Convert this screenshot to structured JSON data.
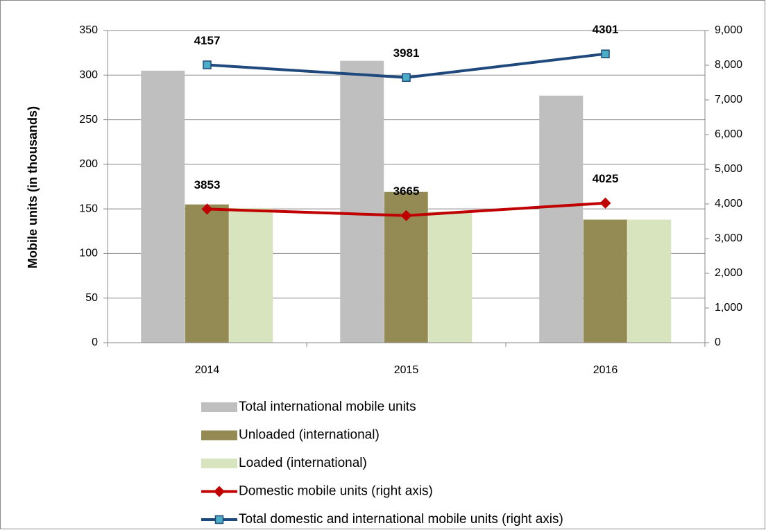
{
  "chart_data": {
    "type": "bar",
    "y_axis_label": "Mobile units (in thousands)",
    "categories": [
      "2014",
      "2015",
      "2016"
    ],
    "ylim": [
      0,
      350
    ],
    "yticks": [
      0,
      50,
      100,
      150,
      200,
      250,
      300,
      350
    ],
    "y2lim": [
      0,
      9000
    ],
    "y2ticks": [
      0,
      {
        "value": 1000,
        "label": "1,000"
      },
      {
        "value": 2000,
        "label": "2,000"
      },
      {
        "value": 3000,
        "label": "3,000"
      },
      {
        "value": 4000,
        "label": "4,000"
      },
      {
        "value": 5000,
        "label": "5,000"
      },
      {
        "value": 6000,
        "label": "6,000"
      },
      {
        "value": 7000,
        "label": "7,000"
      },
      {
        "value": 8000,
        "label": "8,000"
      },
      {
        "value": 9000,
        "label": "9,000"
      }
    ],
    "grid": true,
    "legend": "bottom",
    "series": [
      {
        "name": "Total international mobile units",
        "type": "bar",
        "color": "#bfbfbf",
        "values": [
          305,
          316,
          277
        ]
      },
      {
        "name": "Unloaded (international)",
        "type": "bar",
        "color": "#948a54",
        "values": [
          155,
          169,
          138
        ]
      },
      {
        "name": "Loaded (international)",
        "type": "bar",
        "color": "#d7e4bd",
        "values": [
          151,
          147,
          138
        ]
      },
      {
        "name": "Domestic mobile units (right axis)",
        "type": "line",
        "axis": "y2",
        "marker": "diamond",
        "color": "#c00000",
        "marker_color": "#c00000",
        "values": [
          3853,
          3665,
          4025
        ]
      },
      {
        "name": "Total domestic and international mobile units (right axis)",
        "type": "line",
        "axis": "y2",
        "marker": "square",
        "color": "#1f497d",
        "marker_color": "#4bacc6",
        "values": [
          8010,
          7646,
          8326
        ],
        "data_labels": [
          "4157",
          "3981",
          "4301"
        ]
      }
    ]
  }
}
